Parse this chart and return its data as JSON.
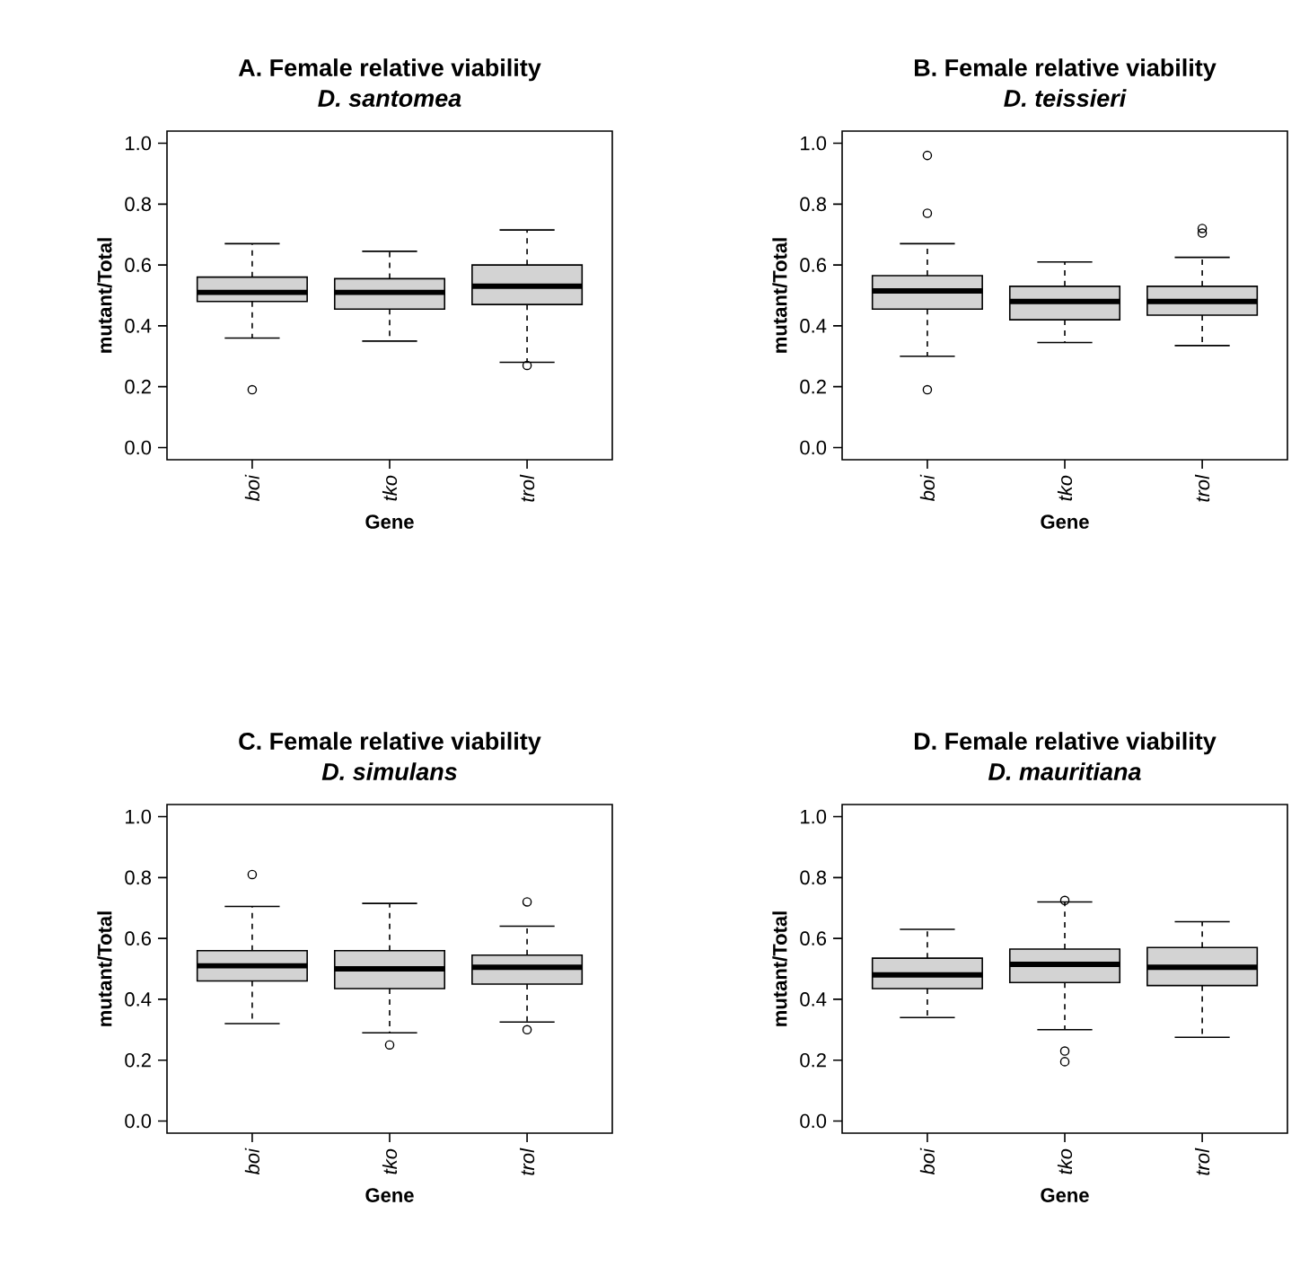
{
  "chart_data": [
    {
      "type": "box",
      "title": "A. Female relative viability",
      "subtitle": "D. santomea",
      "xlabel": "Gene",
      "ylabel": "mutant/Total",
      "color": "#d3d3d3",
      "categories": [
        "boi",
        "tko",
        "trol"
      ],
      "boxes": [
        {
          "low": 0.36,
          "q1": 0.48,
          "median": 0.51,
          "q3": 0.56,
          "high": 0.67,
          "outliers": [
            0.19
          ]
        },
        {
          "low": 0.35,
          "q1": 0.455,
          "median": 0.51,
          "q3": 0.555,
          "high": 0.645
        },
        {
          "low": 0.28,
          "q1": 0.47,
          "median": 0.53,
          "q3": 0.6,
          "high": 0.715,
          "outliers": [
            0.27
          ]
        }
      ],
      "ylim": [
        -0.04,
        1.04
      ],
      "yticks": [
        {
          "value": 0,
          "label": "0.0"
        },
        {
          "value": 0.2,
          "label": "0.2"
        },
        {
          "value": 0.4,
          "label": "0.4"
        },
        {
          "value": 0.6,
          "label": "0.6"
        },
        {
          "value": 0.8,
          "label": "0.8"
        },
        {
          "value": 1,
          "label": "1.0"
        }
      ]
    },
    {
      "type": "box",
      "title": "B. Female relative viability",
      "subtitle": "D. teissieri",
      "xlabel": "Gene",
      "ylabel": "mutant/Total",
      "color": "#d3d3d3",
      "categories": [
        "boi",
        "tko",
        "trol"
      ],
      "boxes": [
        {
          "low": 0.3,
          "q1": 0.455,
          "median": 0.515,
          "q3": 0.565,
          "high": 0.67,
          "outliers": [
            0.96,
            0.77,
            0.19
          ]
        },
        {
          "low": 0.345,
          "q1": 0.42,
          "median": 0.48,
          "q3": 0.53,
          "high": 0.61
        },
        {
          "low": 0.335,
          "q1": 0.435,
          "median": 0.48,
          "q3": 0.53,
          "high": 0.625,
          "outliers": [
            0.72,
            0.705
          ]
        }
      ],
      "ylim": [
        -0.04,
        1.04
      ],
      "yticks": [
        {
          "value": 0,
          "label": "0.0"
        },
        {
          "value": 0.2,
          "label": "0.2"
        },
        {
          "value": 0.4,
          "label": "0.4"
        },
        {
          "value": 0.6,
          "label": "0.6"
        },
        {
          "value": 0.8,
          "label": "0.8"
        },
        {
          "value": 1,
          "label": "1.0"
        }
      ]
    },
    {
      "type": "box",
      "title": "C. Female relative viability",
      "subtitle": "D. simulans",
      "xlabel": "Gene",
      "ylabel": "mutant/Total",
      "color": "#d3d3d3",
      "categories": [
        "boi",
        "tko",
        "trol"
      ],
      "boxes": [
        {
          "low": 0.32,
          "q1": 0.46,
          "median": 0.51,
          "q3": 0.56,
          "high": 0.705,
          "outliers": [
            0.81
          ]
        },
        {
          "low": 0.29,
          "q1": 0.435,
          "median": 0.5,
          "q3": 0.56,
          "high": 0.715,
          "outliers": [
            0.25
          ]
        },
        {
          "low": 0.325,
          "q1": 0.45,
          "median": 0.505,
          "q3": 0.545,
          "high": 0.64,
          "outliers": [
            0.72,
            0.3
          ]
        }
      ],
      "ylim": [
        -0.04,
        1.04
      ],
      "yticks": [
        {
          "value": 0,
          "label": "0.0"
        },
        {
          "value": 0.2,
          "label": "0.2"
        },
        {
          "value": 0.4,
          "label": "0.4"
        },
        {
          "value": 0.6,
          "label": "0.6"
        },
        {
          "value": 0.8,
          "label": "0.8"
        },
        {
          "value": 1,
          "label": "1.0"
        }
      ]
    },
    {
      "type": "box",
      "title": "D. Female relative viability",
      "subtitle": "D. mauritiana",
      "xlabel": "Gene",
      "ylabel": "mutant/Total",
      "color": "#d3d3d3",
      "categories": [
        "boi",
        "tko",
        "trol"
      ],
      "boxes": [
        {
          "low": 0.34,
          "q1": 0.435,
          "median": 0.48,
          "q3": 0.535,
          "high": 0.63
        },
        {
          "low": 0.3,
          "q1": 0.455,
          "median": 0.515,
          "q3": 0.565,
          "high": 0.72,
          "outliers": [
            0.725,
            0.23,
            0.195
          ]
        },
        {
          "low": 0.275,
          "q1": 0.445,
          "median": 0.505,
          "q3": 0.57,
          "high": 0.655
        }
      ],
      "ylim": [
        -0.04,
        1.04
      ],
      "yticks": [
        {
          "value": 0,
          "label": "0.0"
        },
        {
          "value": 0.2,
          "label": "0.2"
        },
        {
          "value": 0.4,
          "label": "0.4"
        },
        {
          "value": 0.6,
          "label": "0.6"
        },
        {
          "value": 0.8,
          "label": "0.8"
        },
        {
          "value": 1,
          "label": "1.0"
        }
      ]
    }
  ]
}
